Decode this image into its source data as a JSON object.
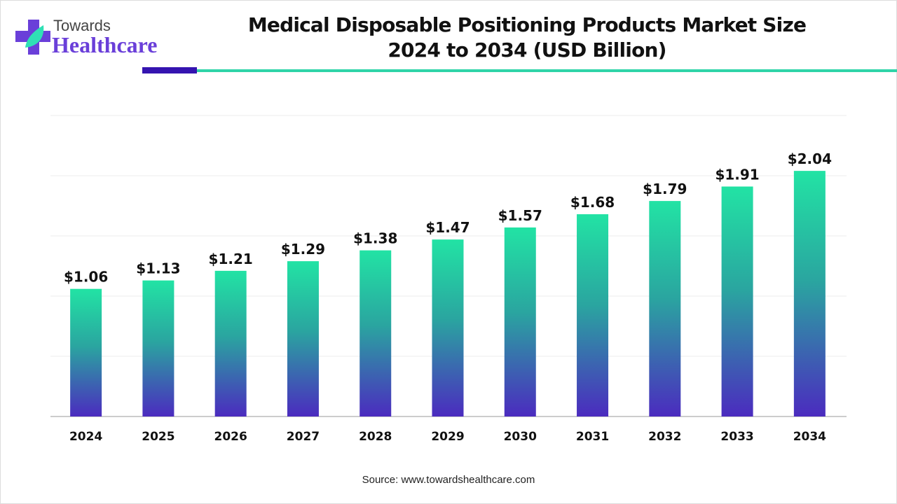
{
  "logo": {
    "line1": "Towards",
    "line2": "Healthcare"
  },
  "title_lines": [
    "Medical Disposable Positioning Products Market Size",
    "2024 to 2034 (USD Billion)"
  ],
  "source": "Source: www.towardshealthcare.com",
  "colors": {
    "bar_top": "#22e3a4",
    "bar_bottom": "#4b2bbf",
    "accent_dark": "#3514b0",
    "accent_teal": "#2fd4a8"
  },
  "chart_data": {
    "type": "bar",
    "title": "Medical Disposable Positioning Products Market Size 2024 to 2034 (USD Billion)",
    "xlabel": "",
    "ylabel": "USD Billion",
    "categories": [
      "2024",
      "2025",
      "2026",
      "2027",
      "2028",
      "2029",
      "2030",
      "2031",
      "2032",
      "2033",
      "2034"
    ],
    "values": [
      1.06,
      1.13,
      1.21,
      1.29,
      1.38,
      1.47,
      1.57,
      1.68,
      1.79,
      1.91,
      2.04
    ],
    "labels": [
      "$1.06",
      "$1.13",
      "$1.21",
      "$1.29",
      "$1.38",
      "$1.47",
      "$1.57",
      "$1.68",
      "$1.79",
      "$1.91",
      "$2.04"
    ],
    "ylim": [
      0,
      2.5
    ],
    "grid": true,
    "gridlines": [
      0.5,
      1.0,
      1.5,
      2.0,
      2.5
    ]
  }
}
